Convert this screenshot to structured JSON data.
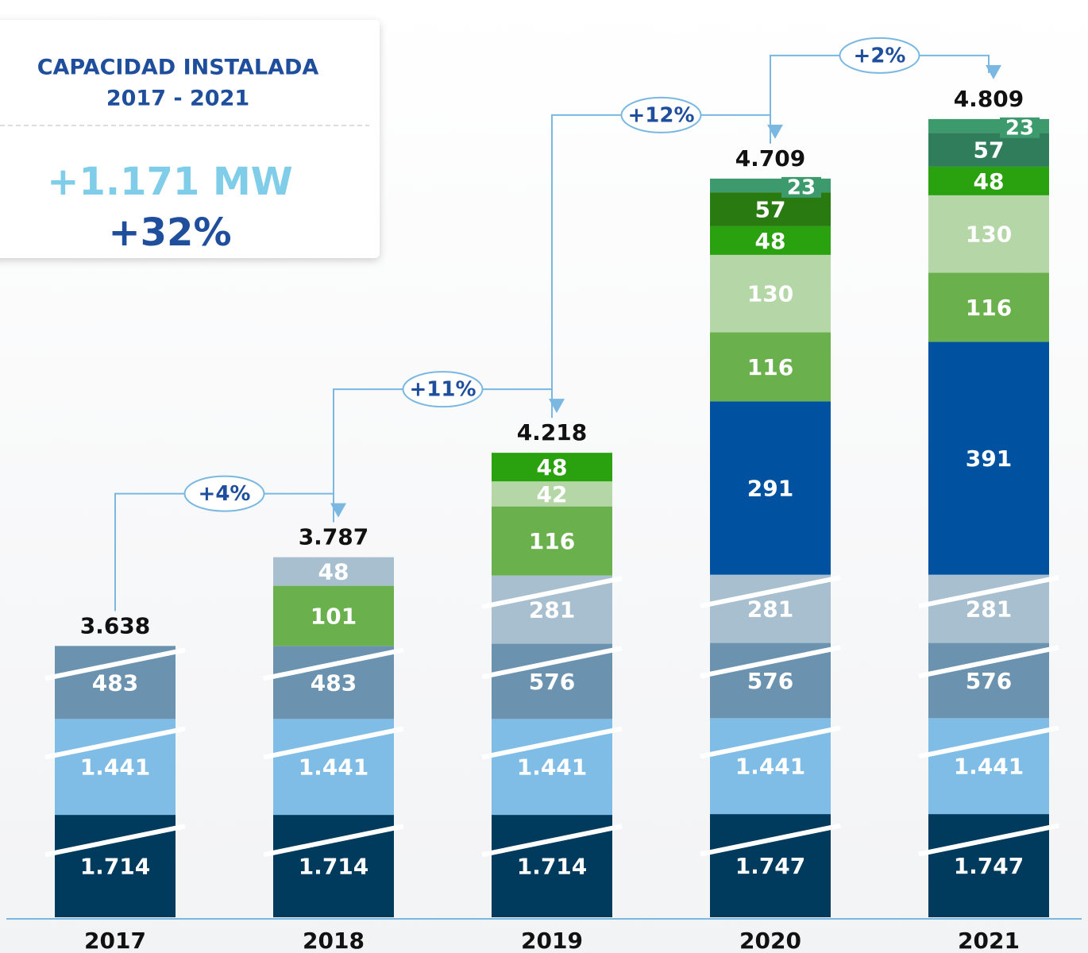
{
  "chart_data": {
    "type": "bar",
    "stacked": true,
    "panel": {
      "title": "CAPACIDAD INSTALADA",
      "period": "2017 - 2021",
      "increase": "+1.171 MW",
      "growth": "+32%"
    },
    "categories": [
      "2017",
      "2018",
      "2019",
      "2020",
      "2021"
    ],
    "totals": [
      3638,
      3787,
      4218,
      4709,
      4809
    ],
    "total_labels": [
      "3.638",
      "3.787",
      "4.218",
      "4.709",
      "4.809"
    ],
    "growth": [
      {
        "value": 4,
        "label": "+4%"
      },
      {
        "value": 11,
        "label": "+11%"
      },
      {
        "value": 12,
        "label": "+12%"
      },
      {
        "value": 2,
        "label": "+2%"
      }
    ],
    "stacks": [
      [
        {
          "value": 1714,
          "label": "1.714",
          "color": "#003a5c",
          "broken": true
        },
        {
          "value": 1441,
          "label": "1.441",
          "color": "#80bde6",
          "broken": true
        },
        {
          "value": 483,
          "color": "#6b93af",
          "broken": true
        }
      ],
      [
        {
          "value": 1714,
          "label": "1.714",
          "color": "#003a5c",
          "broken": true
        },
        {
          "value": 1441,
          "label": "1.441",
          "color": "#80bde6",
          "broken": true
        },
        {
          "value": 483,
          "color": "#6b93af",
          "broken": true
        },
        {
          "value": 101,
          "color": "#6ab04c"
        },
        {
          "value": 48,
          "color": "#a7bfcf"
        }
      ],
      [
        {
          "value": 1714,
          "label": "1.714",
          "color": "#003a5c",
          "broken": true
        },
        {
          "value": 1441,
          "label": "1.441",
          "color": "#80bde6",
          "broken": true
        },
        {
          "value": 576,
          "color": "#6b93af",
          "broken": true
        },
        {
          "value": 281,
          "color": "#a7bfcf",
          "broken": true
        },
        {
          "value": 116,
          "color": "#6ab04c"
        },
        {
          "value": 42,
          "color": "#b5d6a7"
        },
        {
          "value": 48,
          "color": "#2aa10f"
        }
      ],
      [
        {
          "value": 1747,
          "label": "1.747",
          "color": "#003a5c",
          "broken": true
        },
        {
          "value": 1441,
          "label": "1.441",
          "color": "#80bde6",
          "broken": true
        },
        {
          "value": 576,
          "color": "#6b93af",
          "broken": true
        },
        {
          "value": 281,
          "color": "#a7bfcf",
          "broken": true
        },
        {
          "value": 291,
          "color": "#0052a0"
        },
        {
          "value": 116,
          "color": "#6ab04c"
        },
        {
          "value": 130,
          "color": "#b5d6a7"
        },
        {
          "value": 48,
          "color": "#2aa10f"
        },
        {
          "value": 57,
          "color": "#2a7a12"
        },
        {
          "value": 23,
          "color": "#3c9a6c"
        }
      ],
      [
        {
          "value": 1747,
          "label": "1.747",
          "color": "#003a5c",
          "broken": true
        },
        {
          "value": 1441,
          "label": "1.441",
          "color": "#80bde6",
          "broken": true
        },
        {
          "value": 576,
          "color": "#6b93af",
          "broken": true
        },
        {
          "value": 281,
          "color": "#a7bfcf",
          "broken": true
        },
        {
          "value": 391,
          "color": "#0052a0"
        },
        {
          "value": 116,
          "color": "#6ab04c"
        },
        {
          "value": 130,
          "color": "#b5d6a7"
        },
        {
          "value": 48,
          "color": "#2aa10f"
        },
        {
          "value": 57,
          "color": "#2f7d5a"
        },
        {
          "value": 23,
          "color": "#3c9a6c"
        }
      ]
    ]
  }
}
